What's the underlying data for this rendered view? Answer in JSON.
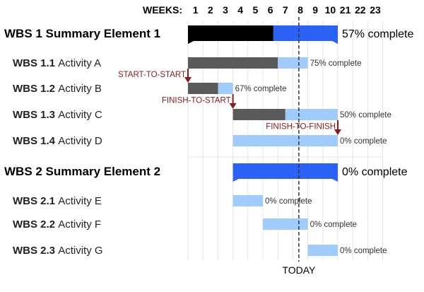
{
  "chart_data": {
    "type": "gantt",
    "weeks_label": "WEEKS:",
    "week_ticks": [
      "1",
      "2",
      "3",
      "4",
      "5",
      "6",
      "7",
      "8",
      "9",
      "10",
      "21",
      "22",
      "23"
    ],
    "today_label": "TODAY",
    "today_week": 7.4,
    "colors": {
      "summary_done": "#000000",
      "summary_todo": "#2a62f5",
      "activity_done": "#5a5a5a",
      "activity_todo": "#9fccfa",
      "dependency": "#8b1a1a",
      "grid": "#e4e4e4"
    },
    "rows": [
      {
        "kind": "summary",
        "id": "WBS 1",
        "name": "Summary Element 1",
        "start": 0,
        "end": 10,
        "complete": 0.57,
        "complete_label": "57% complete"
      },
      {
        "kind": "activity",
        "id": "WBS 1.1",
        "name": "Activity A",
        "start": 0,
        "end": 8,
        "complete": 0.75,
        "complete_label": "75% complete"
      },
      {
        "kind": "activity",
        "id": "WBS 1.2",
        "name": "Activity B",
        "start": 0,
        "end": 3,
        "complete": 0.67,
        "complete_label": "67% complete"
      },
      {
        "kind": "activity",
        "id": "WBS 1.3",
        "name": "Activity C",
        "start": 3,
        "end": 10,
        "complete": 0.5,
        "complete_label": "50% complete"
      },
      {
        "kind": "activity",
        "id": "WBS 1.4",
        "name": "Activity D",
        "start": 3,
        "end": 10,
        "complete": 0,
        "complete_label": "0% complete"
      },
      {
        "kind": "summary",
        "id": "WBS 2",
        "name": "Summary Element 2",
        "start": 3,
        "end": 10,
        "complete": 0,
        "complete_label": "0% complete"
      },
      {
        "kind": "activity",
        "id": "WBS 2.1",
        "name": "Activity E",
        "start": 3,
        "end": 5,
        "complete": 0,
        "complete_label": "0% complete"
      },
      {
        "kind": "activity",
        "id": "WBS 2.2",
        "name": "Activity F",
        "start": 5,
        "end": 8,
        "complete": 0,
        "complete_label": "0% complete"
      },
      {
        "kind": "activity",
        "id": "WBS 2.3",
        "name": "Activity G",
        "start": 8,
        "end": 10,
        "complete": 0,
        "complete_label": "0% complete"
      }
    ],
    "dependencies": [
      {
        "label": "START-TO-START",
        "from_row": 1,
        "to_row": 2,
        "week": 0
      },
      {
        "label": "FINISH-TO-START",
        "from_row": 2,
        "to_row": 3,
        "week": 3
      },
      {
        "label": "FINISH-TO-FINISH",
        "from_row": 3,
        "to_row": 4,
        "week": 10
      }
    ]
  }
}
